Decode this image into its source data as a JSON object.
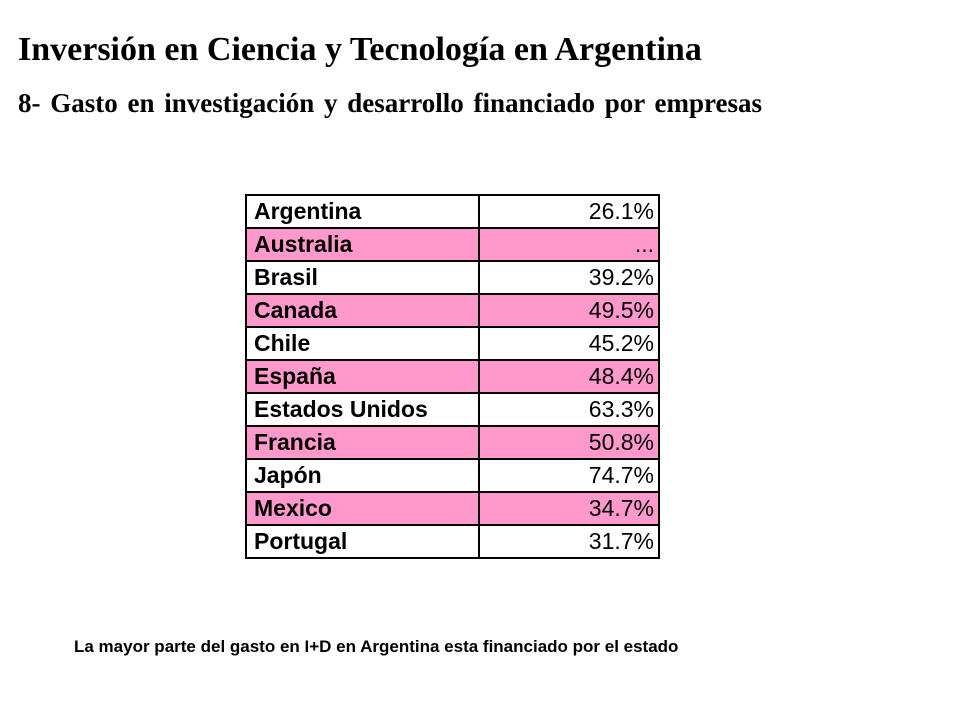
{
  "title": "Inversión en Ciencia y Tecnología en Argentina",
  "subtitle": "8- Gasto en investigación y desarrollo financiado por empresas",
  "colors": {
    "row_highlight": "#ff99cc",
    "row_plain": "#ffffff",
    "border": "#000000"
  },
  "table": {
    "rows": [
      {
        "country": "Argentina",
        "value": "26.1%"
      },
      {
        "country": "Australia",
        "value": "..."
      },
      {
        "country": "Brasil",
        "value": "39.2%"
      },
      {
        "country": "Canada",
        "value": "49.5%"
      },
      {
        "country": "Chile",
        "value": "45.2%"
      },
      {
        "country": "España",
        "value": "48.4%"
      },
      {
        "country": "Estados Unidos",
        "value": "63.3%"
      },
      {
        "country": "Francia",
        "value": "50.8%"
      },
      {
        "country": "Japón",
        "value": "74.7%"
      },
      {
        "country": "Mexico",
        "value": "34.7%"
      },
      {
        "country": "Portugal",
        "value": "31.7%"
      }
    ]
  },
  "note": "La mayor parte del gasto en I+D en Argentina esta financiado por el estado"
}
